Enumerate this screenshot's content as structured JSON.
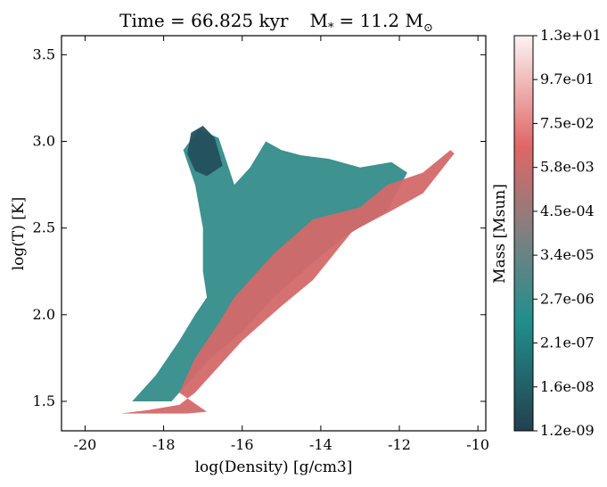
{
  "chart_data": {
    "type": "heatmap",
    "title": "Time = 66.825 kyr    M$_*$ = 11.2 M$_\\odot$",
    "title_parts": {
      "time_label": "Time = 66.825 kyr",
      "mass_label": "M",
      "mass_subscript": "*",
      "mass_value": "= 11.2 M",
      "mass_unit_symbol": "⊙"
    },
    "xlabel": "log(Density) [g/cm3]",
    "ylabel": "log(T) [K]",
    "xlim": [
      -20.6,
      -9.8
    ],
    "ylim": [
      1.33,
      3.61
    ],
    "xticks": [
      -20,
      -18,
      -16,
      -14,
      -12,
      -10
    ],
    "xtick_labels": [
      "-20",
      "-18",
      "-16",
      "-14",
      "-12",
      "-10"
    ],
    "yticks": [
      1.5,
      2.0,
      2.5,
      3.0,
      3.5
    ],
    "ytick_labels": [
      "1.5",
      "2.0",
      "2.5",
      "3.0",
      "3.5"
    ],
    "grid": false,
    "colorbar": {
      "label": "Mass [Msun]",
      "tick_labels": [
        "1.2e-09",
        "1.6e-08",
        "2.1e-07",
        "2.7e-06",
        "3.4e-05",
        "4.5e-04",
        "5.8e-03",
        "7.5e-02",
        "9.7e-01",
        "1.3e+01"
      ],
      "scale": "log",
      "colors": [
        "#23404e",
        "#218f8d",
        "#808080",
        "#e06666",
        "#fcf3f3"
      ]
    },
    "regions": [
      {
        "name": "cold-dense-branch",
        "level": 0.72,
        "points": [
          [
            -19.1,
            1.43
          ],
          [
            -18.2,
            1.43
          ],
          [
            -17.4,
            1.43
          ],
          [
            -16.9,
            1.44
          ],
          [
            -17.6,
            1.55
          ],
          [
            -17.2,
            1.75
          ],
          [
            -16.6,
            1.95
          ],
          [
            -16.2,
            2.1
          ],
          [
            -15.2,
            2.35
          ],
          [
            -14.2,
            2.55
          ],
          [
            -13.0,
            2.62
          ],
          [
            -12.3,
            2.75
          ],
          [
            -11.4,
            2.82
          ],
          [
            -10.7,
            2.95
          ],
          [
            -10.6,
            2.93
          ],
          [
            -11.4,
            2.7
          ],
          [
            -12.2,
            2.6
          ],
          [
            -13.2,
            2.48
          ],
          [
            -14.2,
            2.2
          ],
          [
            -15.0,
            2.05
          ],
          [
            -16.0,
            1.85
          ],
          [
            -16.6,
            1.7
          ],
          [
            -17.2,
            1.55
          ],
          [
            -17.6,
            1.48
          ],
          [
            -18.4,
            1.45
          ]
        ]
      },
      {
        "name": "warm-diffuse-envelope",
        "level": 0.3,
        "points": [
          [
            -18.8,
            1.5
          ],
          [
            -18.2,
            1.65
          ],
          [
            -17.6,
            1.85
          ],
          [
            -17.2,
            2.0
          ],
          [
            -16.9,
            2.1
          ],
          [
            -17.0,
            2.25
          ],
          [
            -17.0,
            2.5
          ],
          [
            -17.2,
            2.75
          ],
          [
            -17.5,
            2.95
          ],
          [
            -17.1,
            3.07
          ],
          [
            -16.6,
            3.02
          ],
          [
            -16.2,
            2.75
          ],
          [
            -15.8,
            2.85
          ],
          [
            -15.4,
            3.0
          ],
          [
            -15.0,
            2.95
          ],
          [
            -14.5,
            2.92
          ],
          [
            -13.8,
            2.9
          ],
          [
            -13.0,
            2.85
          ],
          [
            -12.2,
            2.88
          ],
          [
            -11.8,
            2.82
          ],
          [
            -12.3,
            2.6
          ],
          [
            -13.4,
            2.45
          ],
          [
            -14.2,
            2.3
          ],
          [
            -15.2,
            2.1
          ],
          [
            -16.0,
            1.9
          ],
          [
            -16.8,
            1.75
          ],
          [
            -17.4,
            1.6
          ],
          [
            -17.8,
            1.5
          ]
        ]
      },
      {
        "name": "hot-cap",
        "level": 0.05,
        "points": [
          [
            -17.4,
            2.93
          ],
          [
            -17.3,
            3.05
          ],
          [
            -17.0,
            3.09
          ],
          [
            -16.7,
            3.02
          ],
          [
            -16.5,
            2.86
          ],
          [
            -16.9,
            2.8
          ],
          [
            -17.2,
            2.83
          ]
        ]
      }
    ]
  }
}
